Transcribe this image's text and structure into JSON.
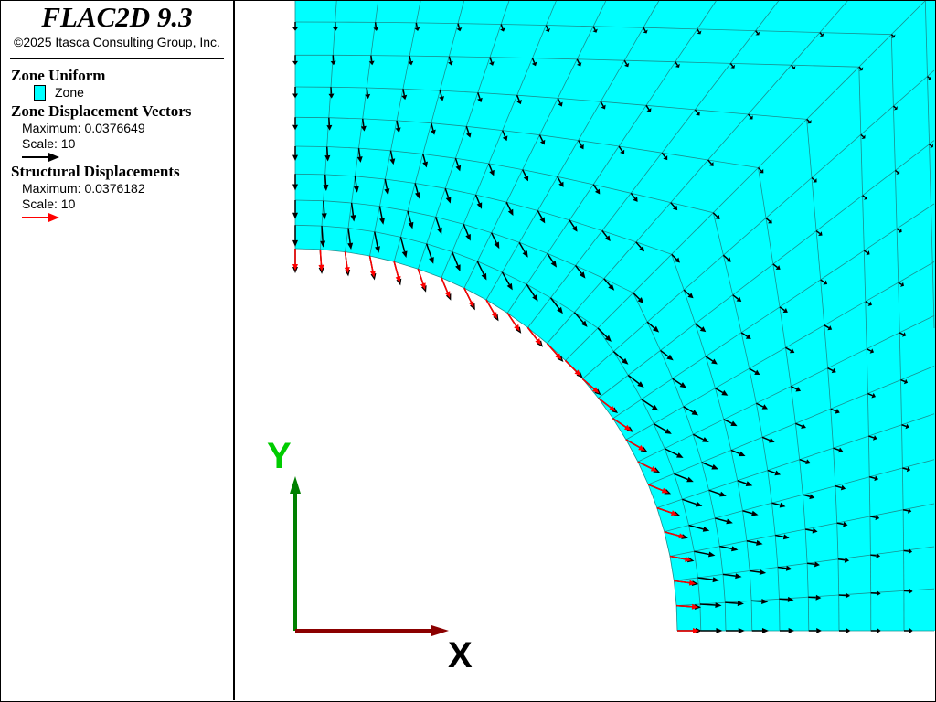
{
  "legend": {
    "title": "FLAC2D 9.3",
    "copyright": "©2025 Itasca Consulting Group, Inc.",
    "zone_uniform": {
      "heading": "Zone Uniform",
      "item": "Zone",
      "color": "#00ffff"
    },
    "zone_displacement": {
      "heading": "Zone Displacement Vectors",
      "maximum": "Maximum: 0.0376649",
      "scale": "Scale: 10",
      "color": "#000000"
    },
    "structural_displacement": {
      "heading": "Structural Displacements",
      "maximum": "Maximum: 0.0376182",
      "scale": "Scale: 10",
      "color": "#ff0000"
    }
  },
  "axes": {
    "x_label": "X",
    "y_label": "Y",
    "x_color": "#8b0000",
    "y_color": "#008000",
    "y_label_color": "#00cc00"
  },
  "colors": {
    "zone": "#00ffff",
    "mesh": "#1a8f8f",
    "zone_vectors": "#000000",
    "structural_vectors": "#ff0000"
  }
}
